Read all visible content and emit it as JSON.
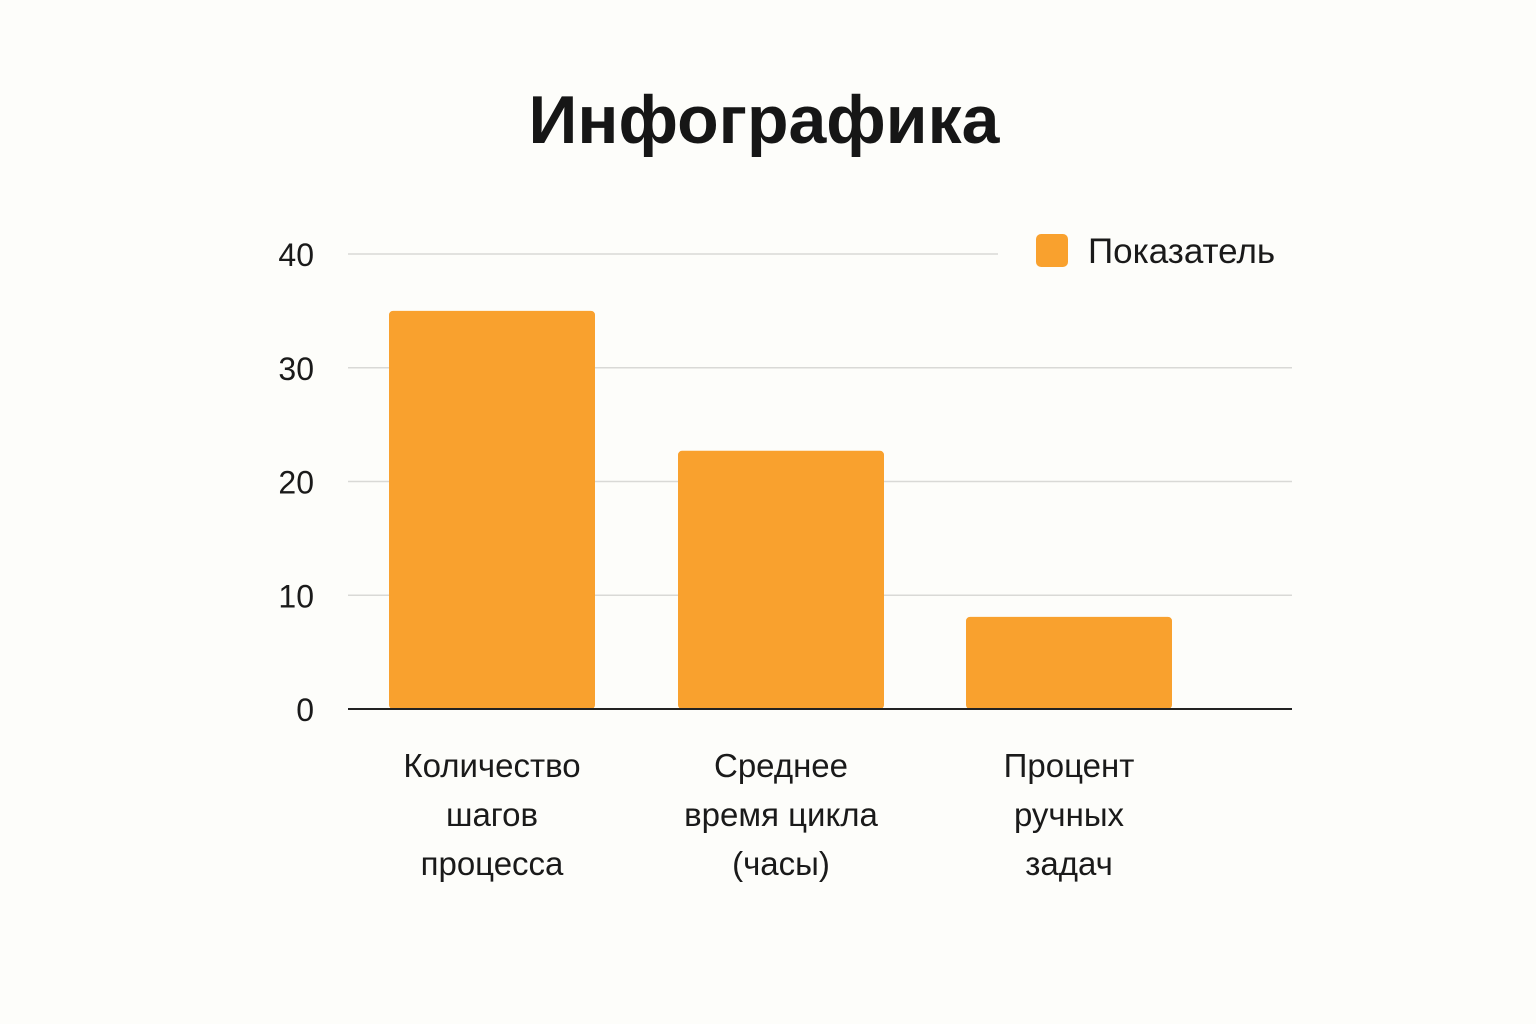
{
  "chart_data": {
    "type": "bar",
    "title": "Инфографика",
    "categories": [
      [
        "Количество",
        "шагов",
        "процесса"
      ],
      [
        "Среднее",
        "время цикла",
        "(часы)"
      ],
      [
        "Процент",
        "ручных",
        "задач"
      ]
    ],
    "series": [
      {
        "name": "Показатель",
        "values": [
          35,
          22.7,
          8.1
        ],
        "color": "#f9a12e"
      }
    ],
    "ylim": [
      0,
      40
    ],
    "yticks": [
      0,
      10,
      20,
      30,
      40
    ],
    "grid": true,
    "legend_position": "top-right",
    "xlabel": "",
    "ylabel": ""
  }
}
